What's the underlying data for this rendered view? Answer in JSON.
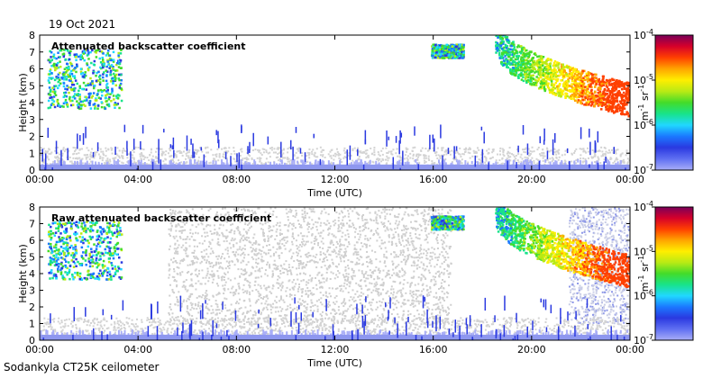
{
  "header": {
    "date": "19 Oct 2021"
  },
  "footer": {
    "instrument": "Sodankyla CT25K ceilometer"
  },
  "colorbar": {
    "unit_main": "m",
    "unit_exp1": "-1",
    "unit_mid": " sr",
    "unit_exp2": "-1",
    "ticks": [
      {
        "base": "10",
        "exp": "-4",
        "value": 0.0001
      },
      {
        "base": "10",
        "exp": "-5",
        "value": 1e-05
      },
      {
        "base": "10",
        "exp": "-6",
        "value": 1e-06
      },
      {
        "base": "10",
        "exp": "-7",
        "value": 1e-07
      }
    ],
    "colors": [
      "#ffffff",
      "#a9aef7",
      "#5f6ff2",
      "#2a39e0",
      "#1b78ff",
      "#20d8ff",
      "#18e38a",
      "#43dc2a",
      "#b8ea15",
      "#ffee00",
      "#ffa500",
      "#ff4000",
      "#d6002a",
      "#7a0059"
    ]
  },
  "chart_data": [
    {
      "type": "heatmap",
      "title": "Attenuated backscatter coefficient",
      "xlabel": "Time (UTC)",
      "ylabel": "Height (km)",
      "x_ticks": [
        "00:00",
        "04:00",
        "08:00",
        "12:00",
        "16:00",
        "20:00",
        "00:00"
      ],
      "x_range_hours": [
        0,
        24
      ],
      "y_ticks": [
        "0",
        "1",
        "2",
        "3",
        "4",
        "5",
        "6",
        "7",
        "8"
      ],
      "y_range_km": [
        0,
        8
      ],
      "color_scale": "log",
      "color_range": [
        1e-07,
        0.0001
      ],
      "noise_background": false,
      "features": [
        {
          "name": "boundary layer aerosol",
          "t_start": 0,
          "t_end": 24,
          "h_bottom": 0,
          "h_top": 0.6,
          "level": "low"
        },
        {
          "name": "elevated cloud",
          "t_start": 0.3,
          "t_end": 3.3,
          "h_bottom": 3.7,
          "h_top": 7.2,
          "level": "high"
        },
        {
          "name": "isolated cloud",
          "t_start": 15.9,
          "t_end": 17.2,
          "h_bottom": 6.7,
          "h_top": 7.5,
          "level": "high"
        },
        {
          "name": "descending cloud",
          "t_start": 18.5,
          "t_end": 24,
          "h_bottom": 3.8,
          "h_top": 7.7,
          "level": "very high"
        }
      ]
    },
    {
      "type": "heatmap",
      "title": "Raw attenuated backscatter coefficient",
      "xlabel": "Time (UTC)",
      "ylabel": "Height (km)",
      "x_ticks": [
        "00:00",
        "04:00",
        "08:00",
        "12:00",
        "16:00",
        "20:00",
        "00:00"
      ],
      "x_range_hours": [
        0,
        24
      ],
      "y_ticks": [
        "0",
        "1",
        "2",
        "3",
        "4",
        "5",
        "6",
        "7",
        "8"
      ],
      "y_range_km": [
        0,
        8
      ],
      "color_scale": "log",
      "color_range": [
        1e-07,
        0.0001
      ],
      "noise_background": true,
      "features": [
        {
          "name": "boundary layer aerosol",
          "t_start": 0,
          "t_end": 24,
          "h_bottom": 0,
          "h_top": 0.6,
          "level": "low"
        },
        {
          "name": "elevated cloud",
          "t_start": 0.3,
          "t_end": 3.3,
          "h_bottom": 3.7,
          "h_top": 7.2,
          "level": "high"
        },
        {
          "name": "isolated cloud",
          "t_start": 15.9,
          "t_end": 17.2,
          "h_bottom": 6.7,
          "h_top": 7.5,
          "level": "high"
        },
        {
          "name": "descending cloud",
          "t_start": 18.5,
          "t_end": 24,
          "h_bottom": 3.8,
          "h_top": 7.7,
          "level": "very high"
        }
      ]
    }
  ]
}
